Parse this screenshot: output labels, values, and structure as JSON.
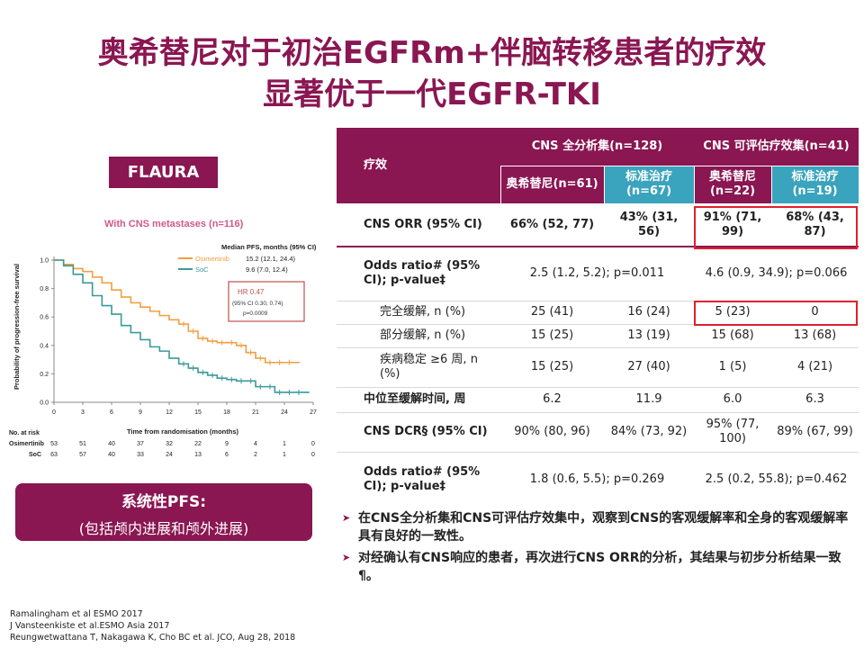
{
  "title": {
    "line1": "奥希替尼对于初治EGFRm+伴脑转移患者的疗效",
    "line2": "显著优于一代EGFR-TKI"
  },
  "badge": "FLAURA",
  "km": {
    "subtitle": "With CNS metastases (n=116)",
    "legend_title": "Median PFS, months (95% CI)",
    "series": [
      {
        "name": "Osimertinib",
        "value": "15.2 (12.1, 24.4)",
        "color": "#f0a042"
      },
      {
        "name": "SoC",
        "value": "9.6 (7.0, 12.4)",
        "color": "#3a9a9a"
      }
    ],
    "hr": {
      "l1": "HR 0.47",
      "l2": "(95% CI 0.30, 0.74)",
      "l3": "p=0.0009"
    },
    "ylabel": "Probability of progression-free survival",
    "xlabel": "Time from randomisation (months)",
    "yticks": [
      "1.0",
      "0.8",
      "0.6",
      "0.4",
      "0.2",
      "0.0"
    ],
    "xticks": [
      "0",
      "3",
      "6",
      "9",
      "12",
      "15",
      "18",
      "21",
      "24",
      "27"
    ],
    "at_risk_label": "No. at risk",
    "at_risk": [
      {
        "name": "Osimertinib",
        "values": [
          "53",
          "51",
          "40",
          "37",
          "32",
          "22",
          "9",
          "4",
          "1",
          "0"
        ]
      },
      {
        "name": "SoC",
        "values": [
          "63",
          "57",
          "40",
          "33",
          "24",
          "13",
          "6",
          "2",
          "1",
          "0"
        ]
      }
    ]
  },
  "chart_data": {
    "type": "line",
    "subtitle": "With CNS metastases (n=116)",
    "xlabel": "Time from randomisation (months)",
    "ylabel": "Probability of progression-free survival",
    "xlim": [
      0,
      27
    ],
    "ylim": [
      0,
      1.0
    ],
    "series": [
      {
        "name": "Osimertinib",
        "x": [
          0,
          1,
          2,
          3,
          4,
          5,
          6,
          7,
          8,
          9,
          10,
          11,
          12,
          13,
          14,
          15,
          16,
          17,
          18,
          19,
          20,
          21,
          22,
          23,
          24,
          25
        ],
        "y": [
          1.0,
          0.97,
          0.94,
          0.92,
          0.88,
          0.84,
          0.79,
          0.74,
          0.7,
          0.67,
          0.64,
          0.61,
          0.58,
          0.55,
          0.5,
          0.45,
          0.43,
          0.42,
          0.42,
          0.4,
          0.35,
          0.31,
          0.28,
          0.28,
          0.28,
          0.28
        ]
      },
      {
        "name": "SoC",
        "x": [
          0,
          1,
          2,
          3,
          4,
          5,
          6,
          7,
          8,
          9,
          10,
          11,
          12,
          13,
          14,
          15,
          16,
          17,
          18,
          19,
          20,
          21,
          22,
          23,
          24,
          25,
          26
        ],
        "y": [
          1.0,
          0.96,
          0.9,
          0.84,
          0.75,
          0.68,
          0.62,
          0.54,
          0.49,
          0.44,
          0.39,
          0.36,
          0.31,
          0.27,
          0.24,
          0.21,
          0.19,
          0.17,
          0.16,
          0.15,
          0.15,
          0.11,
          0.11,
          0.07,
          0.07,
          0.07,
          0.07
        ]
      }
    ]
  },
  "pfs_box": {
    "line1": "系统性PFS:",
    "line2": "(包括颅内进展和颅外进展)"
  },
  "references": [
    "Ramalingham et al ESMO 2017",
    "J Vansteenkiste et al.ESMO Asia 2017",
    "Reungwetwattana T, Nakagawa K, Cho BC et al. JCO, Aug 28, 2018"
  ],
  "table": {
    "col_efficacy": "疗效",
    "group1": "CNS 全分析集(n=128)",
    "group2": "CNS 可评估疗效集(n=41)",
    "sub": [
      "奥希替尼(n=61)",
      "标准治疗(n=67)",
      "奥希替尼(n=22)",
      "标准治疗(n=19)"
    ],
    "rows": {
      "orr": {
        "label": "CNS ORR (95% CI)",
        "c1": "66% (52, 77)",
        "c2": "43% (31, 56)",
        "c3": "91% (71, 99)",
        "c4": "68% (43, 87)"
      },
      "or1": {
        "label": "Odds ratio# (95% CI); p-value‡",
        "v1": "2.5 (1.2, 5.2); p=0.011",
        "v2": "4.6 (0.9, 34.9); p=0.066"
      },
      "cr": {
        "label": "完全缓解, n (%)",
        "c1": "25 (41)",
        "c2": "16 (24)",
        "c3": "5 (23)",
        "c4": "0"
      },
      "pr": {
        "label": "部分缓解, n (%)",
        "c1": "15 (25)",
        "c2": "13 (19)",
        "c3": "15 (68)",
        "c4": "13 (68)"
      },
      "sd": {
        "label": "疾病稳定 ≥6 周, n (%)",
        "c1": "15 (25)",
        "c2": "27 (40)",
        "c3": "1 (5)",
        "c4": "4 (21)"
      },
      "ttr": {
        "label": "中位至缓解时间, 周",
        "c1": "6.2",
        "c2": "11.9",
        "c3": "6.0",
        "c4": "6.3"
      },
      "dcr": {
        "label": "CNS DCR§ (95% CI)",
        "c1": "90% (80, 96)",
        "c2": "84% (73, 92)",
        "c3": "95% (77, 100)",
        "c4": "89% (67, 99)"
      },
      "or2": {
        "label": "Odds ratio# (95% CI); p-value‡",
        "v1": "1.8 (0.6, 5.5); p=0.269",
        "v2": "2.5 (0.2, 55.8); p=0.462"
      }
    }
  },
  "bullets": [
    "在CNS全分析集和CNS可评估疗效集中，观察到CNS的客观缓解率和全身的客观缓解率具有良好的一致性。",
    "对经确认有CNS响应的患者，再次进行CNS ORR的分析，其结果与初步分析结果一致¶。"
  ]
}
